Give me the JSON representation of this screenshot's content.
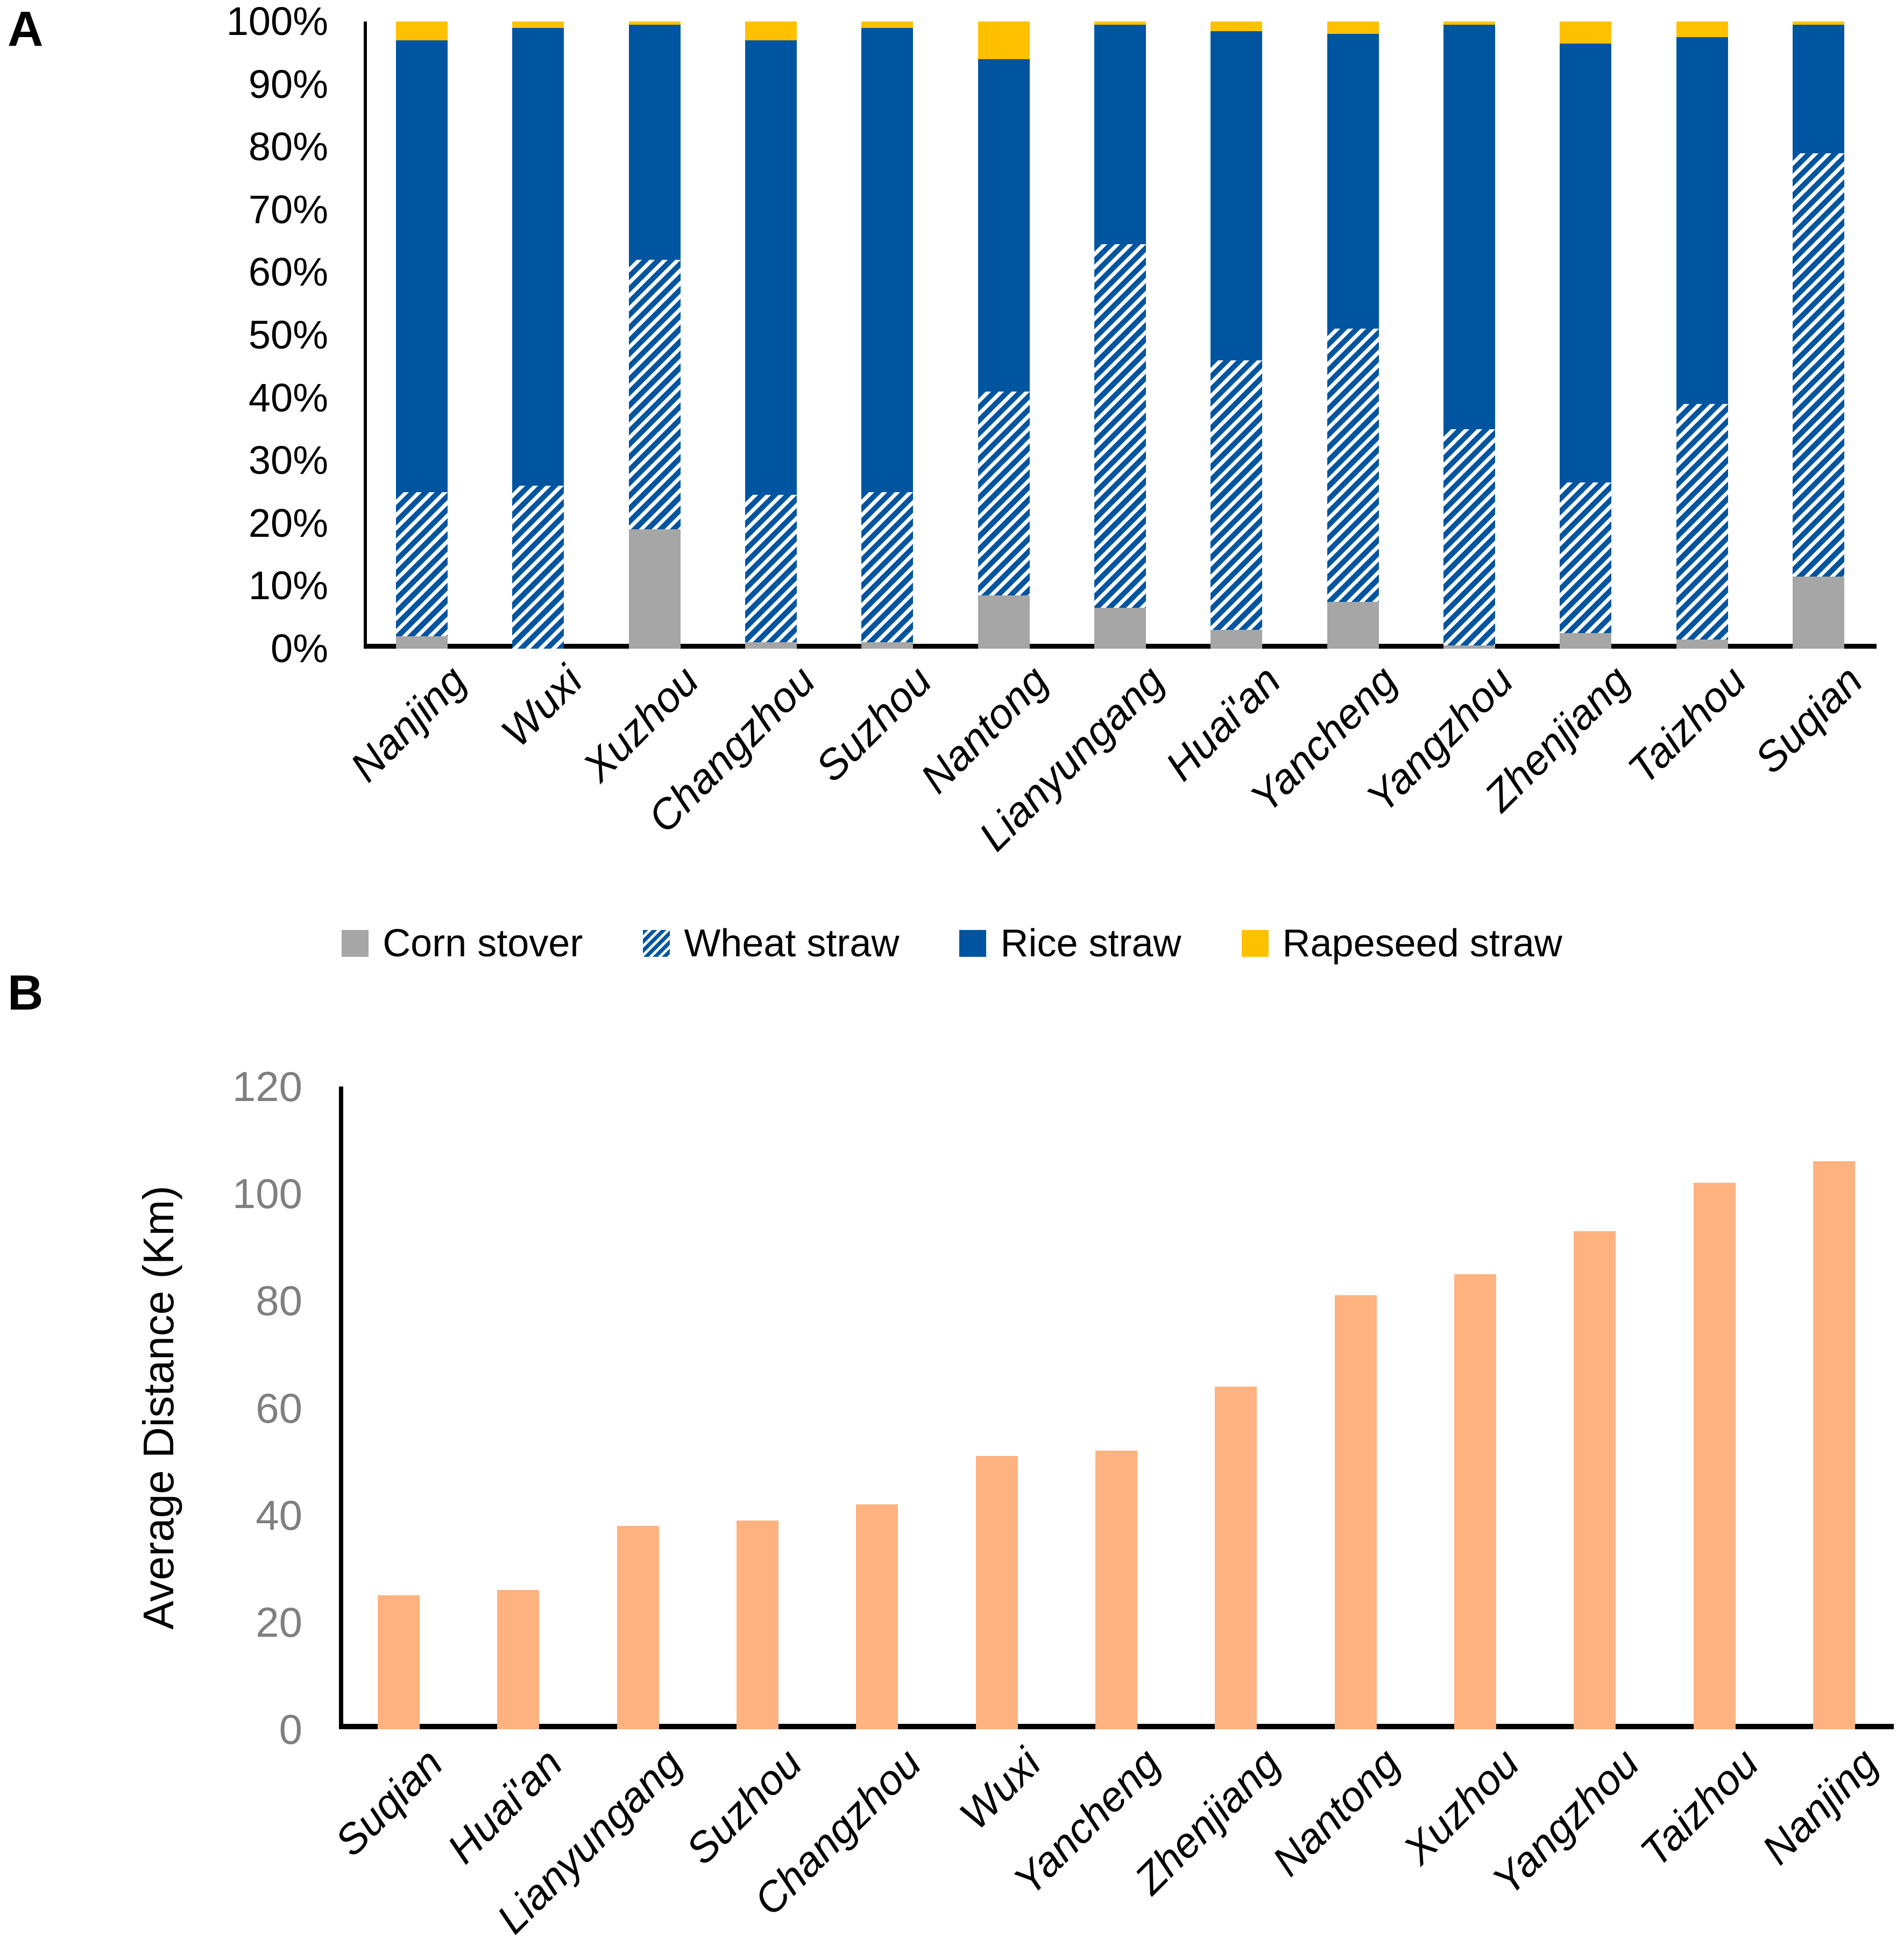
{
  "page": {
    "panel_a_label": "A",
    "panel_b_label": "B"
  },
  "colors": {
    "corn_stover": "#A6A6A6",
    "wheat_stripe_blue": "#0055A0",
    "wheat_background": "#FFFFFF",
    "rice_straw_blue": "#0055A0",
    "rapeseed_gold": "#FFC000",
    "distance_bar_peach": "#FDB27F",
    "axis_black": "#000000",
    "tick_gray": "#7F7F7F"
  },
  "chart_data": [
    {
      "id": "A",
      "type": "bar",
      "subtype": "stacked-100-percent",
      "title": "",
      "xlabel": "",
      "ylabel": "",
      "grid": false,
      "legend_position": "bottom",
      "categories": [
        "Nanjing",
        "Wuxi",
        "Xuzhou",
        "Changzhou",
        "Suzhou",
        "Nantong",
        "Lianyungang",
        "Huai'an",
        "Yancheng",
        "Yangzhou",
        "Zhenjiang",
        "Taizhou",
        "Suqian"
      ],
      "y_axis": {
        "range": [
          0,
          100
        ],
        "unit": "%",
        "ticks": [
          "0%",
          "10%",
          "20%",
          "30%",
          "40%",
          "50%",
          "60%",
          "70%",
          "80%",
          "90%",
          "100%"
        ]
      },
      "series": [
        {
          "name": "Corn stover",
          "key": "corn",
          "swatch": "solid-gray",
          "values": [
            2,
            0,
            19,
            1,
            1,
            8.5,
            6.5,
            3,
            7.5,
            0.5,
            2.5,
            1.5,
            11.5
          ]
        },
        {
          "name": "Wheat straw",
          "key": "wheat",
          "swatch": "blue-hatch",
          "values": [
            23,
            26,
            43,
            23.5,
            24,
            32.5,
            58,
            43,
            43.5,
            34.5,
            24,
            37.5,
            67.5
          ]
        },
        {
          "name": "Rice straw",
          "key": "rice",
          "swatch": "solid-blue",
          "values": [
            72,
            73,
            37.5,
            72.5,
            74,
            53,
            35,
            52.5,
            47,
            64.5,
            70,
            58.5,
            20.5
          ]
        },
        {
          "name": "Rapeseed straw",
          "key": "rapeseed",
          "swatch": "solid-gold",
          "values": [
            3,
            1,
            0.5,
            3,
            1,
            6,
            0.5,
            1.5,
            2,
            0.5,
            3.5,
            2.5,
            0.5
          ]
        }
      ]
    },
    {
      "id": "B",
      "type": "bar",
      "title": "",
      "xlabel": "",
      "ylabel": "Average Distance (Km)",
      "grid": false,
      "ylim": [
        0,
        120
      ],
      "yticks": [
        0,
        20,
        40,
        60,
        80,
        100,
        120
      ],
      "categories": [
        "Suqian",
        "Huai'an",
        "Lianyungang",
        "Suzhou",
        "Changzhou",
        "Wuxi",
        "Yancheng",
        "Zhenjiang",
        "Nantong",
        "Xuzhou",
        "Yangzhou",
        "Taizhou",
        "Nanjing"
      ],
      "values": [
        25,
        26,
        38,
        39,
        42,
        51,
        52,
        64,
        81,
        85,
        93,
        102,
        106
      ]
    }
  ]
}
